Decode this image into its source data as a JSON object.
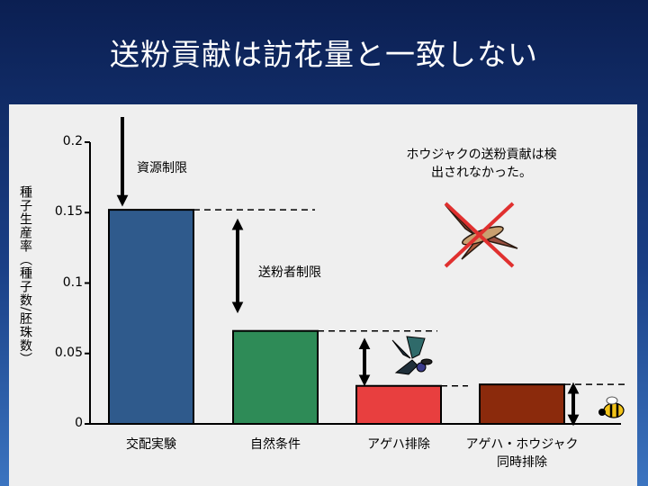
{
  "slide": {
    "title": "送粉貢献は訪花量と一致しない"
  },
  "chart_data": {
    "type": "bar",
    "categories": [
      "交配実験",
      "自然条件",
      "アゲハ排除",
      "アゲハ・ホウジャク同時排除"
    ],
    "category_lines": [
      [
        "交配実験"
      ],
      [
        "自然条件"
      ],
      [
        "アゲハ排除"
      ],
      [
        "アゲハ・ホウジャク",
        "同時排除"
      ]
    ],
    "values": [
      0.152,
      0.066,
      0.027,
      0.028
    ],
    "colors": [
      "#2f5a8c",
      "#2e8b57",
      "#e83f3f",
      "#8b2a0c"
    ],
    "ylabel": "種子生産率（種子数/胚珠数）",
    "ylim": [
      0,
      0.2
    ],
    "yticks": [
      "0",
      "0.05",
      "0.1",
      "0.15",
      "0.2"
    ],
    "ytick_values": [
      0,
      0.05,
      0.1,
      0.15,
      0.2
    ],
    "annotations": {
      "resource_limit": "資源制限",
      "pollinator_limit": "送粉者制限",
      "note_line1": "ホウジャクの送粉貢献は検",
      "note_line2": "出されなかった。"
    },
    "grid": false
  }
}
